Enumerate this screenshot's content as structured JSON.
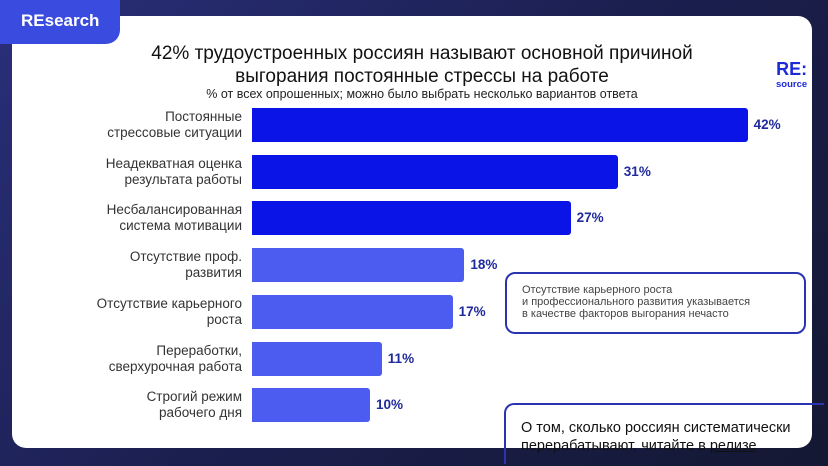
{
  "badge": "REsearch",
  "logo": {
    "main": "RE:",
    "sub": "source"
  },
  "chart_data": {
    "type": "bar",
    "orientation": "horizontal",
    "title": "42% трудоустроенных россиян называют основной причиной выгорания постоянные стрессы на работе",
    "subtitle": "% от всех опрошенных; можно было выбрать несколько вариантов ответа",
    "categories": [
      [
        "Постоянные",
        "стрессовые ситуации"
      ],
      [
        "Неадекватная оценка",
        "результата работы"
      ],
      [
        "Несбалансированная",
        "система мотивации"
      ],
      [
        "Отсутствие проф.",
        "развития"
      ],
      [
        "Отсутствие карьерного",
        "роста"
      ],
      [
        "Переработки,",
        "сверхурочная работа"
      ],
      [
        "Строгий режим",
        "рабочего дня"
      ]
    ],
    "values": [
      42,
      31,
      27,
      18,
      17,
      11,
      10
    ],
    "value_labels": [
      "42%",
      "31%",
      "27%",
      "18%",
      "17%",
      "11%",
      "10%"
    ],
    "colors": [
      "#0a14e6",
      "#0a14e6",
      "#0a14e6",
      "#4d5cf0",
      "#4d5cf0",
      "#4d5cf0",
      "#4d5cf0"
    ],
    "grid": false
  },
  "note": [
    "Отсутствие карьерного роста",
    "и профессионального развития указывается",
    "в качестве факторов выгорания нечасто"
  ],
  "footer": {
    "text1": "О том, сколько россиян систематически",
    "text2": "перерабатывают, читайте в ",
    "link": "релизе"
  }
}
